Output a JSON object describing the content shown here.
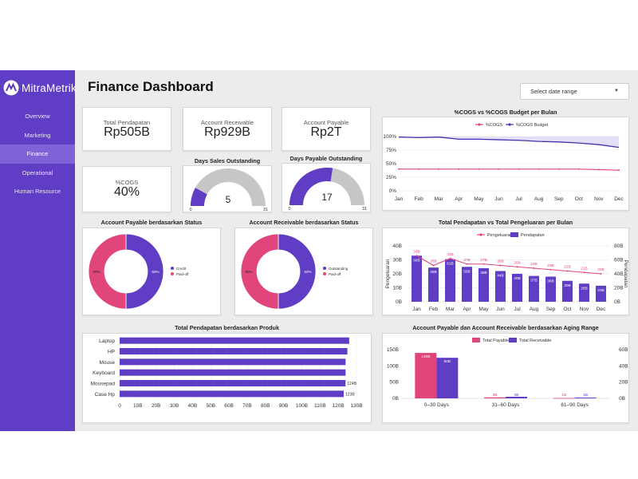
{
  "sidebar": {
    "logo_text": "MitraMetrik",
    "items": [
      {
        "label": "Overview",
        "active": false
      },
      {
        "label": "Marketing",
        "active": false
      },
      {
        "label": "Finance",
        "active": true
      },
      {
        "label": "Operational",
        "active": false
      },
      {
        "label": "Human Resource",
        "active": false
      }
    ]
  },
  "header": {
    "title": "Finance Dashboard",
    "date_range_placeholder": "Select date range"
  },
  "kpis": {
    "total_pendapatan": {
      "label": "Total Pendapatan",
      "value": "Rp505B"
    },
    "account_receivable": {
      "label": "Account Receivable",
      "value": "Rp929B"
    },
    "account_payable": {
      "label": "Account Payable",
      "value": "Rp2T"
    },
    "cogs": {
      "label": "%COGS",
      "value": "40%"
    }
  },
  "gauges": {
    "dso": {
      "title": "Days Sales Outstanding",
      "value": 5,
      "value_text": "5",
      "min": "0",
      "max": "31",
      "min_value": 0,
      "max_value": 31
    },
    "dpo": {
      "title": "Days Payable Outstanding",
      "value": 17,
      "value_text": "17",
      "min": "0",
      "max": "31",
      "min_value": 0,
      "max_value": 31
    }
  },
  "colors": {
    "purple": "#5f3dc4",
    "pink": "#e0457b",
    "gauge_bg": "#c6c6c6",
    "budget_line": "#4a2fae",
    "cogs_line": "#e0457b"
  },
  "chart_data": [
    {
      "id": "cogs_line",
      "type": "line",
      "title": "%COGS vs %COGS Budget per Bulan",
      "categories": [
        "Jan",
        "Feb",
        "Mar",
        "Apr",
        "May",
        "Jun",
        "Jul",
        "Aug",
        "Sep",
        "Oct",
        "Nov",
        "Dec"
      ],
      "y_ticks": [
        "0%",
        "25%",
        "50%",
        "75%",
        "100%"
      ],
      "ylim": [
        0,
        100
      ],
      "series": [
        {
          "name": "%COGS",
          "values": [
            40,
            40,
            40,
            40,
            40,
            40,
            40,
            40,
            40,
            40,
            39,
            38
          ]
        },
        {
          "name": "%COGS Budget",
          "values": [
            99,
            98,
            99,
            95,
            95,
            94,
            93,
            91,
            90,
            88,
            85,
            80
          ]
        }
      ],
      "legend": "top-center",
      "grid": true
    },
    {
      "id": "ap_donut",
      "type": "pie",
      "title": "Account Payable berdasarkan Status",
      "slices": [
        {
          "name": "Credit",
          "value": 50,
          "label": "50%"
        },
        {
          "name": "Paid-off",
          "value": 50,
          "label": "50%"
        }
      ],
      "legend": "right"
    },
    {
      "id": "ar_donut",
      "type": "pie",
      "title": "Account Receivable berdasarkan Status",
      "slices": [
        {
          "name": "Outstanding",
          "value": 50,
          "label": "50%"
        },
        {
          "name": "Paid-off",
          "value": 50,
          "label": "50%"
        }
      ],
      "legend": "right"
    },
    {
      "id": "rev_exp",
      "type": "bar",
      "title": "Total Pendapatan vs Total Pengeluaran per Bulan",
      "categories": [
        "Jan",
        "Feb",
        "Mar",
        "Apr",
        "May",
        "Jun",
        "Jul",
        "Aug",
        "Sep",
        "Oct",
        "Nov",
        "Dec"
      ],
      "ylabel_left": "Pengeluaran",
      "ylabel_right": "Pendapatan",
      "y_ticks_left": [
        "0B",
        "10B",
        "20B",
        "30B",
        "40B"
      ],
      "y_ticks_right": [
        "0B",
        "20B",
        "40B",
        "60B",
        "80B"
      ],
      "ylim_left": [
        0,
        40
      ],
      "ylim_right": [
        0,
        80
      ],
      "series": [
        {
          "name": "Pengeluaran",
          "type": "line",
          "axis": "left",
          "values": [
            33,
            26,
            31,
            27,
            27,
            26,
            25,
            24,
            23,
            22,
            21,
            20
          ],
          "labels": [
            "33B",
            "26B",
            "31B",
            "27B",
            "27B",
            "26B",
            "25B",
            "24B",
            "23B",
            "22B",
            "21B",
            "20B"
          ]
        },
        {
          "name": "Pendapatan",
          "type": "bar",
          "axis": "right",
          "values": [
            66,
            49,
            61,
            50,
            48,
            44,
            40,
            37,
            36,
            30,
            26,
            23
          ],
          "labels": [
            "66B",
            "49B",
            "61B",
            "50B",
            "48B",
            "44B",
            "40B",
            "37B",
            "36B",
            "30B",
            "26B",
            "23B"
          ]
        }
      ],
      "legend": "top-center"
    },
    {
      "id": "rev_product",
      "type": "bar",
      "orientation": "horizontal",
      "title": "Total Pendapatan berdasarkan Produk",
      "categories": [
        "Laptop",
        "HP",
        "Mouse",
        "Keyboard",
        "Mousepad",
        "Case Hp"
      ],
      "values": [
        126,
        125,
        124,
        124,
        124,
        123
      ],
      "labels": [
        "",
        "",
        "",
        "",
        "124B",
        "123B"
      ],
      "x_ticks": [
        "0",
        "10B",
        "20B",
        "30B",
        "40B",
        "50B",
        "60B",
        "70B",
        "80B",
        "90B",
        "100B",
        "110B",
        "120B",
        "130B"
      ],
      "xlim": [
        0,
        130
      ]
    },
    {
      "id": "aging",
      "type": "bar",
      "title": "Account Payable dan Account Receivable berdasarkan Aging Range",
      "categories": [
        "0–30 Days",
        "31–60 Days",
        "61–90 Days"
      ],
      "y_ticks_left": [
        "0B",
        "50B",
        "100B",
        "150B"
      ],
      "y_ticks_right": [
        "0B",
        "20B",
        "40B",
        "60B"
      ],
      "ylim_left": [
        0,
        150
      ],
      "ylim_right": [
        0,
        60
      ],
      "series": [
        {
          "name": "Total Payable",
          "axis": "left",
          "values": [
            140,
            3,
            1
          ],
          "labels": [
            "140B",
            "3B",
            "1B"
          ]
        },
        {
          "name": "Total Receivable",
          "axis": "right",
          "values": [
            50,
            2,
            1
          ],
          "labels": [
            "50B",
            "2B",
            "1B"
          ]
        }
      ],
      "legend": "top-center"
    }
  ]
}
